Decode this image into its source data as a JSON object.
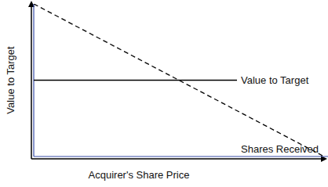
{
  "chart_data": {
    "type": "line",
    "x_label": "Acquirer's Share Price",
    "y_label": "Value to Target",
    "x": [
      0,
      70,
      100
    ],
    "xlim": [
      0,
      100
    ],
    "ylim": [
      0,
      100
    ],
    "tick_labels": false,
    "grid": false,
    "series": [
      {
        "name": "Value to Target",
        "color": "#000000",
        "line_style": "solid",
        "values": [
          50,
          50,
          null
        ]
      },
      {
        "name": "Shares Received",
        "color": "#000000",
        "line_style": "dashed",
        "values": [
          100,
          30,
          0
        ]
      }
    ]
  }
}
